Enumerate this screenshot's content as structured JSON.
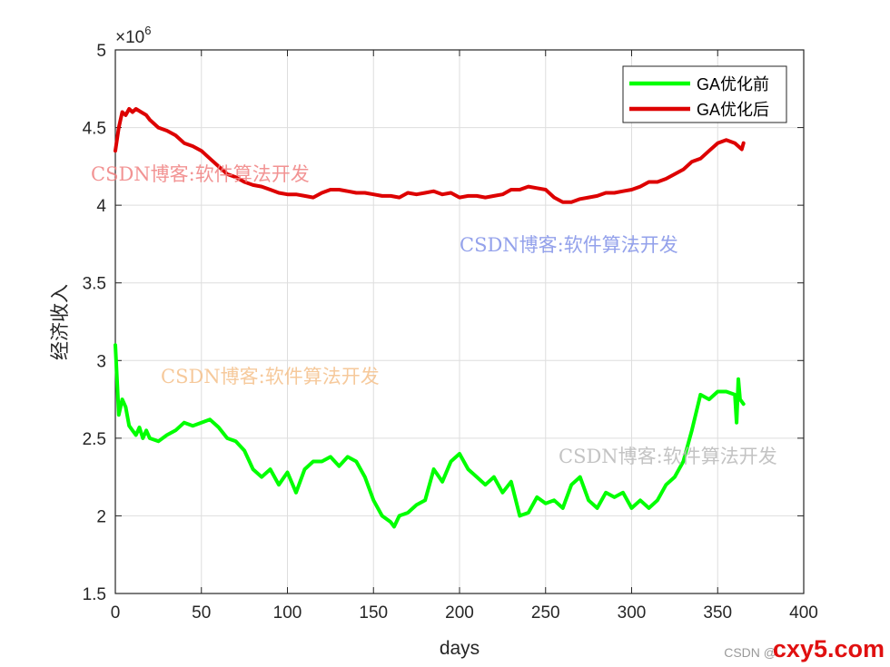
{
  "chart_data": {
    "type": "line",
    "title": "",
    "xlabel": "days",
    "ylabel": "经济收入",
    "y_exponent_label": "×10^6",
    "xlim": [
      0,
      400
    ],
    "ylim": [
      1.5,
      5
    ],
    "x_ticks": [
      "0",
      "50",
      "100",
      "150",
      "200",
      "250",
      "300",
      "350",
      "400"
    ],
    "y_ticks": [
      "1.5",
      "2",
      "2.5",
      "3",
      "3.5",
      "4",
      "4.5",
      "5"
    ],
    "grid": true,
    "legend_position": "top-right",
    "y_scale_note": "values in units of 10^6",
    "series": [
      {
        "name": "GA优化前",
        "color": "#00ff00",
        "x": [
          0,
          2,
          4,
          6,
          8,
          10,
          12,
          14,
          16,
          18,
          20,
          25,
          30,
          35,
          40,
          45,
          50,
          55,
          60,
          65,
          70,
          75,
          80,
          85,
          90,
          95,
          100,
          105,
          110,
          115,
          120,
          125,
          130,
          135,
          140,
          145,
          150,
          155,
          160,
          162,
          165,
          170,
          175,
          180,
          185,
          190,
          195,
          200,
          205,
          210,
          215,
          220,
          225,
          230,
          235,
          240,
          245,
          250,
          255,
          260,
          265,
          270,
          275,
          280,
          285,
          290,
          295,
          300,
          305,
          310,
          315,
          320,
          325,
          330,
          335,
          340,
          345,
          350,
          355,
          360,
          361,
          362,
          363,
          365
        ],
        "values": [
          3.1,
          2.65,
          2.75,
          2.7,
          2.58,
          2.55,
          2.52,
          2.57,
          2.5,
          2.55,
          2.5,
          2.48,
          2.52,
          2.55,
          2.6,
          2.58,
          2.6,
          2.62,
          2.57,
          2.5,
          2.48,
          2.42,
          2.3,
          2.25,
          2.3,
          2.2,
          2.28,
          2.15,
          2.3,
          2.35,
          2.35,
          2.38,
          2.32,
          2.38,
          2.35,
          2.25,
          2.1,
          2.0,
          1.96,
          1.93,
          2.0,
          2.02,
          2.07,
          2.1,
          2.3,
          2.22,
          2.35,
          2.4,
          2.3,
          2.25,
          2.2,
          2.25,
          2.15,
          2.22,
          2.0,
          2.02,
          2.12,
          2.08,
          2.1,
          2.05,
          2.2,
          2.25,
          2.1,
          2.05,
          2.15,
          2.12,
          2.15,
          2.05,
          2.1,
          2.05,
          2.1,
          2.2,
          2.25,
          2.35,
          2.55,
          2.78,
          2.75,
          2.8,
          2.8,
          2.78,
          2.6,
          2.88,
          2.75,
          2.72
        ]
      },
      {
        "name": "GA优化后",
        "color": "#dd0000",
        "x": [
          0,
          2,
          4,
          6,
          8,
          10,
          12,
          15,
          18,
          20,
          25,
          30,
          35,
          40,
          45,
          50,
          55,
          60,
          65,
          70,
          75,
          80,
          85,
          90,
          95,
          100,
          105,
          110,
          115,
          120,
          125,
          130,
          135,
          140,
          145,
          150,
          155,
          160,
          165,
          170,
          175,
          180,
          185,
          190,
          195,
          200,
          205,
          210,
          215,
          220,
          225,
          230,
          235,
          240,
          245,
          250,
          255,
          260,
          265,
          270,
          275,
          280,
          285,
          290,
          295,
          300,
          305,
          310,
          315,
          320,
          325,
          330,
          335,
          340,
          345,
          350,
          355,
          360,
          362,
          364,
          365
        ],
        "values": [
          4.35,
          4.5,
          4.6,
          4.58,
          4.62,
          4.6,
          4.62,
          4.6,
          4.58,
          4.55,
          4.5,
          4.48,
          4.45,
          4.4,
          4.38,
          4.35,
          4.3,
          4.25,
          4.2,
          4.18,
          4.15,
          4.13,
          4.12,
          4.1,
          4.08,
          4.07,
          4.07,
          4.06,
          4.05,
          4.08,
          4.1,
          4.1,
          4.09,
          4.08,
          4.08,
          4.07,
          4.06,
          4.06,
          4.05,
          4.08,
          4.07,
          4.08,
          4.09,
          4.07,
          4.08,
          4.05,
          4.06,
          4.06,
          4.05,
          4.06,
          4.07,
          4.1,
          4.1,
          4.12,
          4.11,
          4.1,
          4.05,
          4.02,
          4.02,
          4.04,
          4.05,
          4.06,
          4.08,
          4.08,
          4.09,
          4.1,
          4.12,
          4.15,
          4.15,
          4.17,
          4.2,
          4.23,
          4.28,
          4.3,
          4.35,
          4.4,
          4.42,
          4.4,
          4.38,
          4.36,
          4.4
        ]
      }
    ]
  },
  "watermarks": [
    {
      "text": "CSDN博客:软件算法开发",
      "color": "#f08080"
    },
    {
      "text": "CSDN博客:软件算法开发",
      "color": "#8090e8"
    },
    {
      "text": "CSDN博客:软件算法开发",
      "color": "#f5c08a"
    },
    {
      "text": "CSDN博客:软件算法开发",
      "color": "#b8b8b8"
    }
  ],
  "footer": {
    "csdn_text": "CSDN @",
    "logo_text": "cxy5.com"
  }
}
